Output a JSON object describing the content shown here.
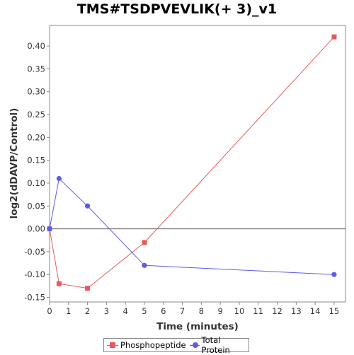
{
  "chart_data": {
    "type": "line",
    "title": "TMS#TSDPVEVLIK(+ 3)_v1",
    "xlabel": "Time (minutes)",
    "ylabel": "log2(dDAVP/Control)",
    "xlim": [
      0,
      15.6
    ],
    "ylim": [
      -0.16,
      0.445
    ],
    "x_ticks": [
      0,
      1,
      2,
      3,
      4,
      5,
      6,
      7,
      8,
      9,
      10,
      11,
      12,
      13,
      14,
      15
    ],
    "y_ticks": [
      -0.15,
      -0.1,
      -0.05,
      0.0,
      0.05,
      0.1,
      0.15,
      0.2,
      0.25,
      0.3,
      0.35,
      0.4
    ],
    "y_tick_labels": [
      "-0.15",
      "-0.10",
      "-0.05",
      "0.00",
      "0.05",
      "0.10",
      "0.15",
      "0.20",
      "0.25",
      "0.30",
      "0.35",
      "0.40"
    ],
    "grid": false,
    "zero_line": true,
    "legend_position": "bottom",
    "series": [
      {
        "name": "Phosphopeptide",
        "color": "#e8595a",
        "marker": "square",
        "points": [
          {
            "x": 0,
            "y": 0.0
          },
          {
            "x": 0.5,
            "y": -0.12
          },
          {
            "x": 2,
            "y": -0.13
          },
          {
            "x": 5,
            "y": -0.03
          },
          {
            "x": 15,
            "y": 0.42
          }
        ]
      },
      {
        "name": "Total Protein",
        "color": "#5b5ce8",
        "marker": "circle",
        "points": [
          {
            "x": 0,
            "y": 0.0
          },
          {
            "x": 0.5,
            "y": 0.11
          },
          {
            "x": 2,
            "y": 0.05
          },
          {
            "x": 5,
            "y": -0.08
          },
          {
            "x": 15,
            "y": -0.1
          }
        ]
      }
    ]
  }
}
